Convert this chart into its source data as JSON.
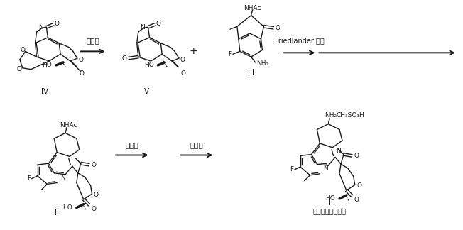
{
  "bg_color": "#ffffff",
  "line_color": "#1a1a1a",
  "figsize": [
    6.52,
    3.24
  ],
  "dpi": 100,
  "label_IV": "IV",
  "label_V": "V",
  "label_III": "III",
  "label_II": "II",
  "label_I": "I",
  "label_product": "依喜替康甲磺酸盐",
  "reaction1_label": "脱保护",
  "reaction2_label": "Friedlander 缩合",
  "reaction3_label": "甲磺酸",
  "reaction4_label": "重结晶",
  "plus_sign": "+",
  "CH3SO3H": "CH₃SO₃H"
}
